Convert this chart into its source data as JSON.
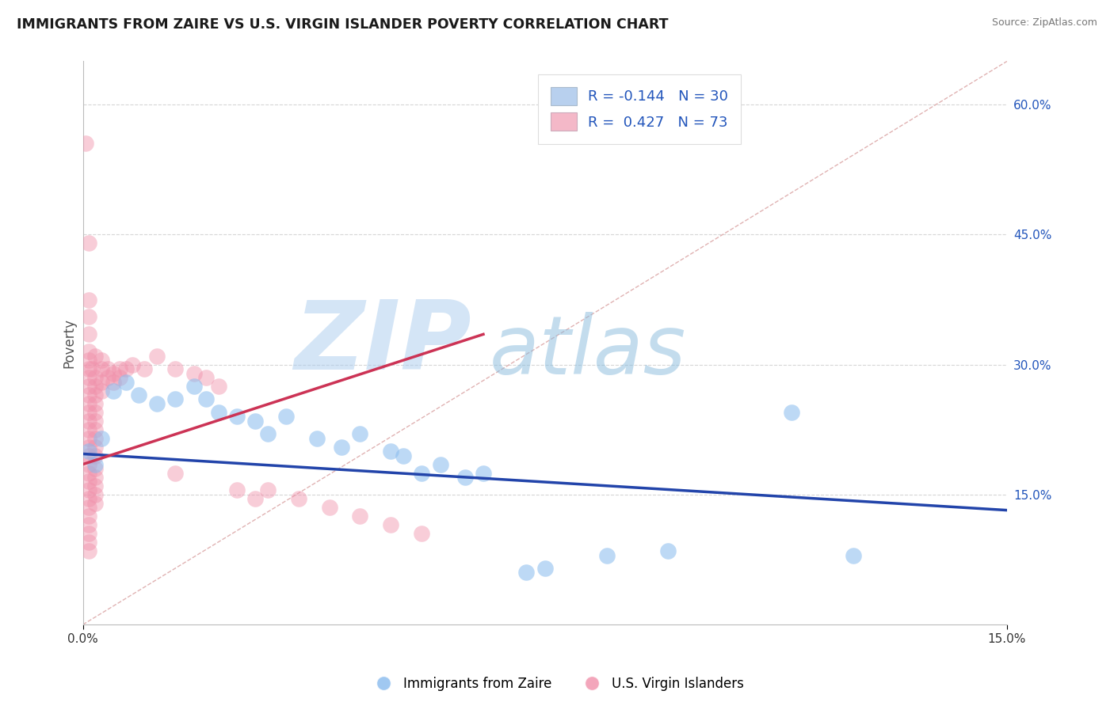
{
  "title": "IMMIGRANTS FROM ZAIRE VS U.S. VIRGIN ISLANDER POVERTY CORRELATION CHART",
  "source_text": "Source: ZipAtlas.com",
  "ylabel": "Poverty",
  "xlim": [
    0.0,
    0.15
  ],
  "ylim": [
    0.0,
    0.65
  ],
  "x_ticks": [
    0.0,
    0.15
  ],
  "x_tick_labels": [
    "0.0%",
    "15.0%"
  ],
  "y_ticks_right": [
    0.15,
    0.3,
    0.45,
    0.6
  ],
  "y_tick_labels_right": [
    "15.0%",
    "30.0%",
    "45.0%",
    "60.0%"
  ],
  "blue_legend_color": "#b8d0ee",
  "pink_legend_color": "#f4b8c8",
  "legend_text_color": "#2255bb",
  "blue_scatter_color": "#88bbee",
  "pink_scatter_color": "#f090aa",
  "blue_line_color": "#2244aa",
  "pink_line_color": "#cc3355",
  "diag_line_color": "#ddaaaa",
  "watermark_text_zip": "ZIP",
  "watermark_text_atlas": "atlas",
  "watermark_color_zip": "#aaccee",
  "watermark_color_atlas": "#88bbdd",
  "watermark_alpha": 0.5,
  "background_color": "#ffffff",
  "grid_color": "#cccccc",
  "blue_line_x": [
    0.0,
    0.15
  ],
  "blue_line_y": [
    0.197,
    0.132
  ],
  "pink_line_x": [
    0.0,
    0.065
  ],
  "pink_line_y": [
    0.185,
    0.335
  ],
  "diag_line_x": [
    0.0,
    0.15
  ],
  "diag_line_y": [
    0.0,
    0.65
  ],
  "blue_points": [
    [
      0.001,
      0.2
    ],
    [
      0.002,
      0.185
    ],
    [
      0.003,
      0.215
    ],
    [
      0.005,
      0.27
    ],
    [
      0.007,
      0.28
    ],
    [
      0.009,
      0.265
    ],
    [
      0.012,
      0.255
    ],
    [
      0.015,
      0.26
    ],
    [
      0.018,
      0.275
    ],
    [
      0.02,
      0.26
    ],
    [
      0.022,
      0.245
    ],
    [
      0.025,
      0.24
    ],
    [
      0.028,
      0.235
    ],
    [
      0.03,
      0.22
    ],
    [
      0.033,
      0.24
    ],
    [
      0.038,
      0.215
    ],
    [
      0.042,
      0.205
    ],
    [
      0.045,
      0.22
    ],
    [
      0.05,
      0.2
    ],
    [
      0.052,
      0.195
    ],
    [
      0.055,
      0.175
    ],
    [
      0.058,
      0.185
    ],
    [
      0.062,
      0.17
    ],
    [
      0.065,
      0.175
    ],
    [
      0.072,
      0.06
    ],
    [
      0.075,
      0.065
    ],
    [
      0.085,
      0.08
    ],
    [
      0.095,
      0.085
    ],
    [
      0.115,
      0.245
    ],
    [
      0.125,
      0.08
    ]
  ],
  "pink_points": [
    [
      0.0005,
      0.555
    ],
    [
      0.001,
      0.44
    ],
    [
      0.001,
      0.375
    ],
    [
      0.001,
      0.355
    ],
    [
      0.001,
      0.335
    ],
    [
      0.001,
      0.315
    ],
    [
      0.001,
      0.305
    ],
    [
      0.001,
      0.295
    ],
    [
      0.001,
      0.285
    ],
    [
      0.001,
      0.275
    ],
    [
      0.001,
      0.265
    ],
    [
      0.001,
      0.255
    ],
    [
      0.001,
      0.245
    ],
    [
      0.001,
      0.235
    ],
    [
      0.001,
      0.225
    ],
    [
      0.001,
      0.215
    ],
    [
      0.001,
      0.205
    ],
    [
      0.001,
      0.195
    ],
    [
      0.001,
      0.185
    ],
    [
      0.001,
      0.175
    ],
    [
      0.001,
      0.165
    ],
    [
      0.001,
      0.155
    ],
    [
      0.001,
      0.145
    ],
    [
      0.001,
      0.135
    ],
    [
      0.001,
      0.125
    ],
    [
      0.001,
      0.115
    ],
    [
      0.001,
      0.105
    ],
    [
      0.001,
      0.095
    ],
    [
      0.001,
      0.085
    ],
    [
      0.0015,
      0.295
    ],
    [
      0.002,
      0.31
    ],
    [
      0.002,
      0.285
    ],
    [
      0.002,
      0.275
    ],
    [
      0.002,
      0.265
    ],
    [
      0.002,
      0.255
    ],
    [
      0.002,
      0.245
    ],
    [
      0.002,
      0.235
    ],
    [
      0.002,
      0.225
    ],
    [
      0.002,
      0.215
    ],
    [
      0.002,
      0.205
    ],
    [
      0.002,
      0.195
    ],
    [
      0.002,
      0.18
    ],
    [
      0.002,
      0.17
    ],
    [
      0.002,
      0.16
    ],
    [
      0.002,
      0.15
    ],
    [
      0.002,
      0.14
    ],
    [
      0.003,
      0.305
    ],
    [
      0.003,
      0.295
    ],
    [
      0.003,
      0.28
    ],
    [
      0.003,
      0.27
    ],
    [
      0.004,
      0.295
    ],
    [
      0.004,
      0.285
    ],
    [
      0.005,
      0.29
    ],
    [
      0.005,
      0.28
    ],
    [
      0.006,
      0.295
    ],
    [
      0.006,
      0.285
    ],
    [
      0.007,
      0.295
    ],
    [
      0.008,
      0.3
    ],
    [
      0.01,
      0.295
    ],
    [
      0.012,
      0.31
    ],
    [
      0.015,
      0.295
    ],
    [
      0.015,
      0.175
    ],
    [
      0.018,
      0.29
    ],
    [
      0.02,
      0.285
    ],
    [
      0.022,
      0.275
    ],
    [
      0.025,
      0.155
    ],
    [
      0.028,
      0.145
    ],
    [
      0.03,
      0.155
    ],
    [
      0.035,
      0.145
    ],
    [
      0.04,
      0.135
    ],
    [
      0.045,
      0.125
    ],
    [
      0.05,
      0.115
    ],
    [
      0.055,
      0.105
    ]
  ]
}
